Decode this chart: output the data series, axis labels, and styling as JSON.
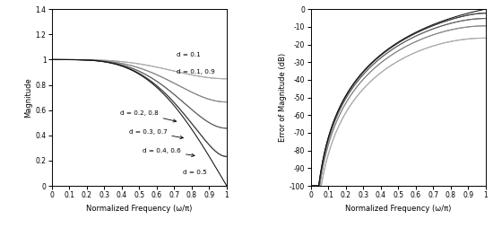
{
  "d_values": [
    0.1,
    0.2,
    0.3,
    0.4,
    0.5
  ],
  "left_ylim": [
    0,
    1.4
  ],
  "left_yticks": [
    0,
    0.2,
    0.4,
    0.6,
    0.8,
    1.0,
    1.2,
    1.4
  ],
  "right_ylim": [
    -100,
    0
  ],
  "right_yticks": [
    -100,
    -90,
    -80,
    -70,
    -60,
    -50,
    -40,
    -30,
    -20,
    -10,
    0
  ],
  "xlim": [
    0,
    1
  ],
  "xticks": [
    0,
    0.1,
    0.2,
    0.3,
    0.4,
    0.5,
    0.6,
    0.7,
    0.8,
    0.9,
    1.0
  ],
  "xlabel": "Normalized Frequency (ω/π)",
  "left_ylabel": "Magnitude",
  "right_ylabel": "Error of Magnitude (dB)",
  "gray_levels": [
    "#aaaaaa",
    "#888888",
    "#666666",
    "#444444",
    "#111111"
  ]
}
